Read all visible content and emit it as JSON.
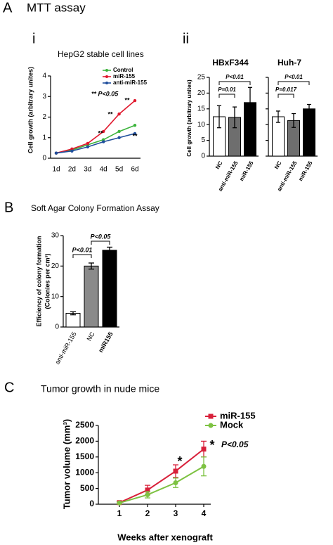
{
  "section_title": "MTT assay",
  "panel_labels": [
    "A",
    "i",
    "ii",
    "B",
    "C"
  ],
  "chart_data": [
    {
      "type": "line",
      "title": "HepG2 stable cell lines",
      "ylabel": "Cell growth (arbitrary unites)",
      "categories": [
        "1d",
        "2d",
        "3d",
        "4d",
        "5d",
        "6d"
      ],
      "series": [
        {
          "name": "Control",
          "color": "#3cb43c",
          "values": [
            0.25,
            0.4,
            0.65,
            0.9,
            1.3,
            1.6
          ]
        },
        {
          "name": "miR-155",
          "color": "#e0182d",
          "values": [
            0.25,
            0.45,
            0.72,
            1.3,
            2.15,
            2.8
          ]
        },
        {
          "name": "anti-miR-155",
          "color": "#1f4e9c",
          "values": [
            0.25,
            0.35,
            0.55,
            0.8,
            1.0,
            1.2
          ]
        }
      ],
      "ylim": [
        0,
        4
      ],
      "yticks": [
        0,
        1,
        2,
        3,
        4
      ],
      "legend": "upper right",
      "annotations": [
        "**",
        "**",
        "**",
        "**",
        "** P<0.05"
      ]
    },
    {
      "type": "grouped-bar",
      "ylabel": "Cell growth (arbitrary unites)",
      "categories": [
        "NC",
        "anti-miR-155",
        "miR-155"
      ],
      "colors": [
        "#ffffff",
        "#6e6e6e",
        "#000000"
      ],
      "series": [
        {
          "name": "HBxF344",
          "values": [
            12.5,
            12.3,
            17
          ],
          "errors": [
            3.5,
            3.3,
            4.8
          ],
          "annotations": [
            "P<0.01",
            "P=0.01"
          ]
        },
        {
          "name": "Huh-7",
          "values": [
            12.5,
            11.3,
            15
          ],
          "errors": [
            1.8,
            2.2,
            1.4
          ],
          "annotations": [
            "P<0.01",
            "P=0.017"
          ]
        }
      ],
      "ylim": [
        0,
        25
      ],
      "yticks": [
        0,
        5,
        10,
        15,
        20,
        25
      ]
    },
    {
      "type": "bar",
      "title": "Soft Agar Colony Formation Assay",
      "ylabel": [
        "Efficiency of colony formation",
        "(Colonies per cm³)"
      ],
      "categories": [
        "anti-miR-155",
        "NC",
        "miR155"
      ],
      "colors": [
        "#ffffff",
        "#8a8a8a",
        "#000000"
      ],
      "values": [
        4.5,
        20,
        25.2
      ],
      "errors": [
        0.5,
        1,
        1
      ],
      "ylim": [
        0,
        30
      ],
      "yticks": [
        0,
        10,
        20,
        30
      ],
      "annotations": [
        "P<0.01",
        "P<0.05"
      ]
    },
    {
      "type": "line-xy",
      "title": "Tumor growth in nude mice",
      "ylabel": "Tumor volume (mm³)",
      "xlabel": "Weeks after xenograft",
      "x": [
        1,
        2,
        3,
        4
      ],
      "xlim": [
        0.25,
        4.25
      ],
      "xticks": [
        1,
        2,
        3,
        4
      ],
      "series": [
        {
          "name": "miR-155",
          "color": "#d8203a",
          "values": [
            50,
            450,
            1050,
            1750
          ],
          "errors": [
            30,
            150,
            200,
            250
          ]
        },
        {
          "name": "Mock",
          "color": "#7dc242",
          "values": [
            40,
            300,
            680,
            1200
          ],
          "errors": [
            30,
            100,
            150,
            300
          ]
        }
      ],
      "ylim": [
        0,
        2500
      ],
      "yticks": [
        0,
        500,
        1000,
        1500,
        2000,
        2500
      ],
      "legend": "upper right",
      "annotations": [
        "*",
        "*",
        "P<0.05"
      ]
    }
  ]
}
